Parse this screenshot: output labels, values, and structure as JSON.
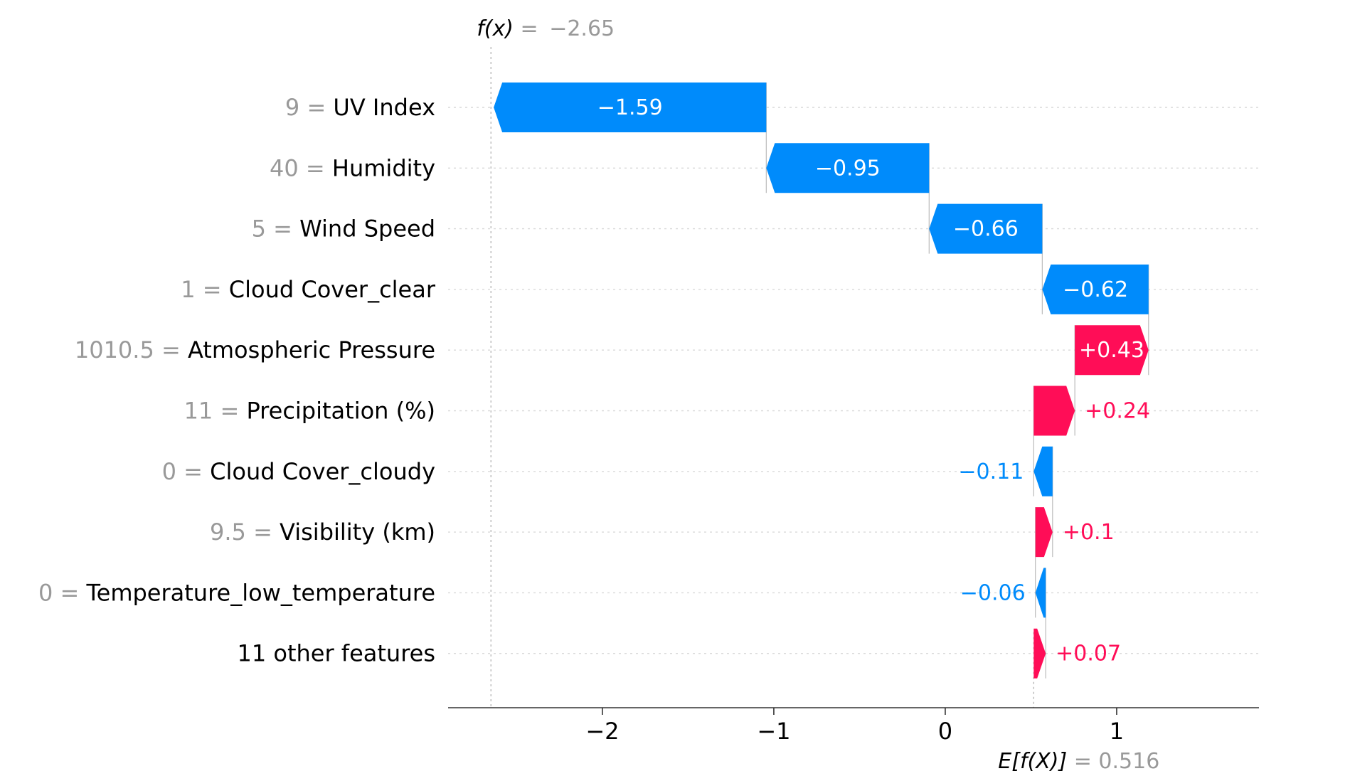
{
  "chart_data": {
    "type": "waterfall",
    "fx_label": "f(x)",
    "fx_value": "−2.65",
    "fx": -2.65,
    "base_label": "E[f(X)]",
    "base_value_text": "0.516",
    "base_value": 0.516,
    "xlim": [
      -2.9,
      1.83
    ],
    "x_ticks": [
      {
        "value": -2,
        "label": "−2"
      },
      {
        "value": -1,
        "label": "−1"
      },
      {
        "value": 0,
        "label": "0"
      },
      {
        "value": 1,
        "label": "1"
      }
    ],
    "colors": {
      "positive": "#ff0d57",
      "negative": "#008bfb",
      "feature_value": "#999999"
    },
    "features": [
      {
        "value": "9",
        "name": "UV Index",
        "contribution": -1.59,
        "label": "−1.59"
      },
      {
        "value": "40",
        "name": "Humidity",
        "contribution": -0.95,
        "label": "−0.95"
      },
      {
        "value": "5",
        "name": "Wind Speed",
        "contribution": -0.66,
        "label": "−0.66"
      },
      {
        "value": "1",
        "name": "Cloud Cover_clear",
        "contribution": -0.62,
        "label": "−0.62"
      },
      {
        "value": "1010.5",
        "name": "Atmospheric Pressure",
        "contribution": 0.43,
        "label": "+0.43"
      },
      {
        "value": "11",
        "name": "Precipitation (%)",
        "contribution": 0.24,
        "label": "+0.24"
      },
      {
        "value": "0",
        "name": "Cloud Cover_cloudy",
        "contribution": -0.11,
        "label": "−0.11"
      },
      {
        "value": "9.5",
        "name": "Visibility (km)",
        "contribution": 0.1,
        "label": "+0.1"
      },
      {
        "value": "0",
        "name": "Temperature_low_temperature",
        "contribution": -0.06,
        "label": "−0.06"
      },
      {
        "value": "",
        "name": "11 other features",
        "contribution": 0.07,
        "label": "+0.07"
      }
    ]
  }
}
